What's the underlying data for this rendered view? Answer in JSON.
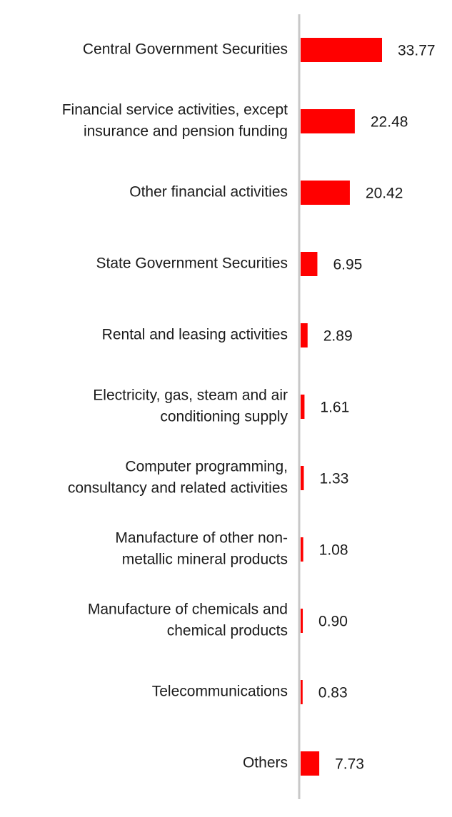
{
  "chart_data": {
    "type": "bar",
    "orientation": "horizontal",
    "title": "",
    "xlabel": "",
    "ylabel": "",
    "categories": [
      "Central Government Securities",
      "Financial service activities, except insurance and pension funding",
      "Other financial activities",
      "State Government Securities",
      "Rental and leasing activities",
      "Electricity, gas, steam and air conditioning supply",
      "Computer programming, consultancy and related activities",
      "Manufacture of other non-metallic mineral products",
      "Manufacture of chemicals and chemical products",
      "Telecommunications",
      "Others"
    ],
    "category_lines": [
      [
        "Central Government Securities"
      ],
      [
        "Financial service activities, except",
        "insurance and pension funding"
      ],
      [
        "Other financial activities"
      ],
      [
        "State Government Securities"
      ],
      [
        "Rental and leasing activities"
      ],
      [
        "Electricity, gas, steam and air",
        "conditioning supply"
      ],
      [
        "Computer programming,",
        "consultancy and related activities"
      ],
      [
        "Manufacture of other non-",
        "metallic mineral products"
      ],
      [
        "Manufacture of chemicals and",
        "chemical products"
      ],
      [
        "Telecommunications"
      ],
      [
        "Others"
      ]
    ],
    "values": [
      33.77,
      22.48,
      20.42,
      6.95,
      2.89,
      1.61,
      1.33,
      1.08,
      0.9,
      0.83,
      7.73
    ],
    "value_labels": [
      "33.77",
      "22.48",
      "20.42",
      "6.95",
      "2.89",
      "1.61",
      "1.33",
      "1.08",
      "0.90",
      "0.83",
      "7.73"
    ],
    "xlim": [
      0,
      35
    ],
    "bar_color": "#ff0000",
    "axis_color": "#c8c8c8",
    "grid": false,
    "legend": "none"
  }
}
